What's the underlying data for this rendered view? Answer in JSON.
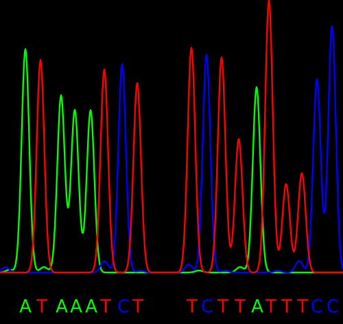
{
  "chart_data": {
    "type": "line",
    "title": "",
    "xlabel": "",
    "ylabel": "",
    "x_range": [
      0,
      500
    ],
    "y_range": [
      0,
      400
    ],
    "grid": false,
    "legend": "none",
    "base_colors": {
      "A": "#00ff00",
      "T": "#ff0000",
      "C": "#0000ff"
    },
    "peaks": [
      {
        "base": "A",
        "x": 37,
        "height": 328
      },
      {
        "base": "T",
        "x": 59,
        "height": 312
      },
      {
        "base": "A",
        "x": 89,
        "height": 260
      },
      {
        "base": "A",
        "x": 109,
        "height": 238
      },
      {
        "base": "A",
        "x": 132,
        "height": 238
      },
      {
        "base": "T",
        "x": 152,
        "height": 298
      },
      {
        "base": "C",
        "x": 178,
        "height": 306
      },
      {
        "base": "T",
        "x": 200,
        "height": 278
      },
      {
        "base": "T",
        "x": 279,
        "height": 330
      },
      {
        "base": "C",
        "x": 301,
        "height": 320
      },
      {
        "base": "T",
        "x": 323,
        "height": 316
      },
      {
        "base": "T",
        "x": 348,
        "height": 196
      },
      {
        "base": "A",
        "x": 374,
        "height": 272
      },
      {
        "base": "T",
        "x": 392,
        "height": 400
      },
      {
        "base": "T",
        "x": 417,
        "height": 130
      },
      {
        "base": "T",
        "x": 440,
        "height": 146
      },
      {
        "base": "C",
        "x": 462,
        "height": 284
      },
      {
        "base": "C",
        "x": 484,
        "height": 362
      }
    ],
    "minor_peaks": [
      {
        "base": "C",
        "x": 8,
        "height": 8
      },
      {
        "base": "A",
        "x": 14,
        "height": 4
      },
      {
        "base": "A",
        "x": 64,
        "height": 8
      },
      {
        "base": "C",
        "x": 152,
        "height": 17
      },
      {
        "base": "A",
        "x": 120,
        "height": 4
      },
      {
        "base": "C",
        "x": 205,
        "height": 3
      },
      {
        "base": "C",
        "x": 275,
        "height": 12
      },
      {
        "base": "A",
        "x": 290,
        "height": 3
      },
      {
        "base": "C",
        "x": 328,
        "height": 3
      },
      {
        "base": "A",
        "x": 350,
        "height": 8
      },
      {
        "base": "C",
        "x": 405,
        "height": 3
      },
      {
        "base": "C",
        "x": 436,
        "height": 17
      }
    ],
    "base_calls": [
      {
        "label": "A",
        "x": 37
      },
      {
        "label": "T",
        "x": 61
      },
      {
        "label": "A",
        "x": 90
      },
      {
        "label": "A",
        "x": 111
      },
      {
        "label": "A",
        "x": 133
      },
      {
        "label": "T",
        "x": 154
      },
      {
        "label": "C",
        "x": 180
      },
      {
        "label": "T",
        "x": 201
      },
      {
        "label": "T",
        "x": 280
      },
      {
        "label": "C",
        "x": 302
      },
      {
        "label": "T",
        "x": 325
      },
      {
        "label": "T",
        "x": 350
      },
      {
        "label": "A",
        "x": 375
      },
      {
        "label": "T",
        "x": 395
      },
      {
        "label": "T",
        "x": 418
      },
      {
        "label": "T",
        "x": 441
      },
      {
        "label": "C",
        "x": 462
      },
      {
        "label": "C",
        "x": 485
      }
    ]
  }
}
